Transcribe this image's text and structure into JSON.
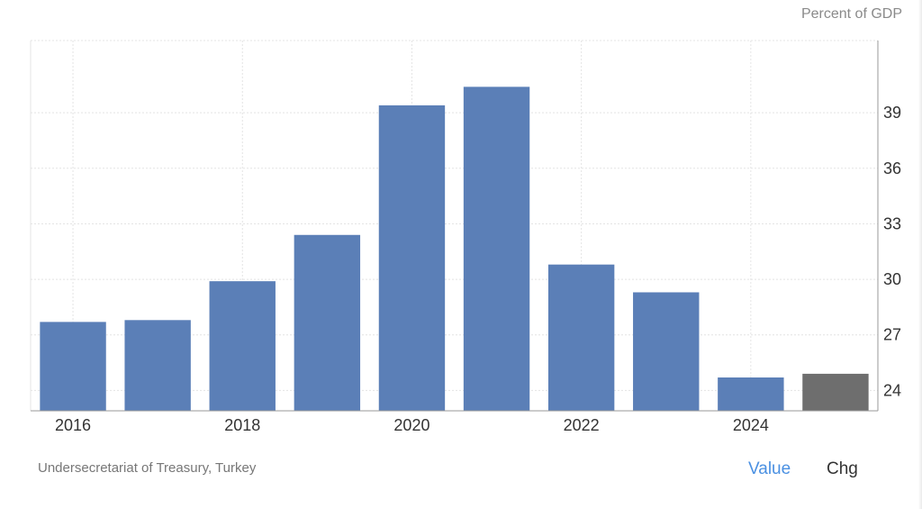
{
  "chart_data": {
    "type": "bar",
    "unit_label": "Percent of GDP",
    "categories": [
      "2016",
      "2017",
      "2018",
      "2019",
      "2020",
      "2021",
      "2022",
      "2023",
      "2024",
      "2025"
    ],
    "x_tick_labels": [
      "2016",
      "2018",
      "2020",
      "2022",
      "2024"
    ],
    "values": [
      27.7,
      27.8,
      29.9,
      32.4,
      39.4,
      40.4,
      30.8,
      29.3,
      24.7,
      24.9
    ],
    "highlighted_index": 9,
    "y_ticks": [
      24,
      27,
      30,
      33,
      36,
      39
    ],
    "ylim": [
      22.9,
      42.9
    ],
    "y_axis_position": "right",
    "grid": true,
    "colors": {
      "bar": "#5b7fb7",
      "highlight": "#6e6e6e",
      "grid": "#e4e4e4",
      "axis": "#9a9a9a"
    }
  },
  "footer": {
    "source": "Undersecretariat of Treasury, Turkey",
    "tabs": {
      "value": "Value",
      "chg": "Chg"
    }
  },
  "colors": {
    "active_tab": "#4a90e2",
    "inactive_tab": "#333333",
    "source_text": "#777777"
  }
}
